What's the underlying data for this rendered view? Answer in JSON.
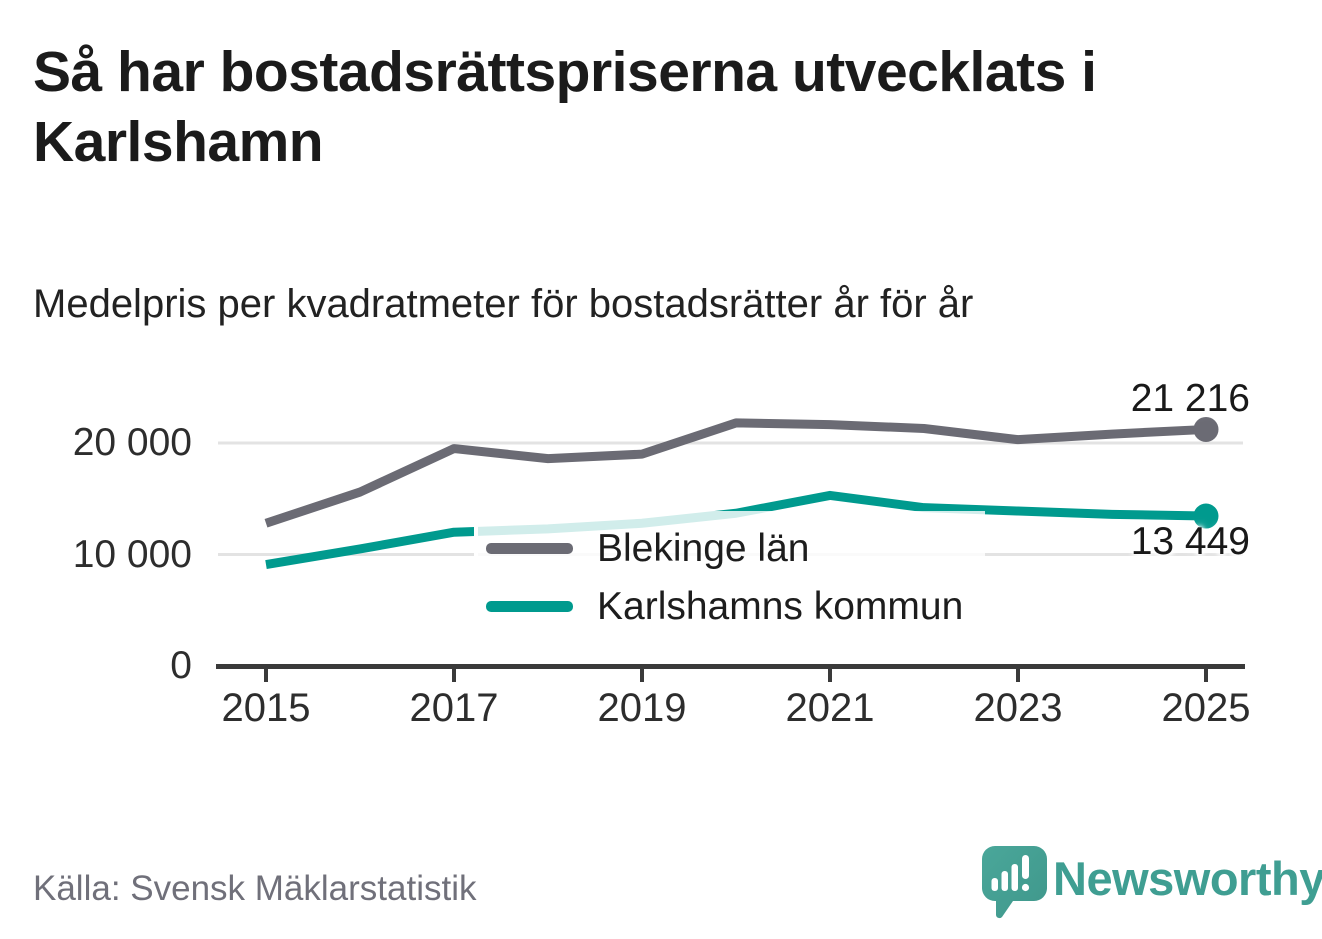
{
  "header": {
    "title": "Så har bostadsrättspriserna utvecklats i\nKarlshamn",
    "subtitle": "Medelpris per kvadratmeter för bostadsrätter år för år"
  },
  "chart_data": {
    "type": "line",
    "x": [
      2015,
      2016,
      2017,
      2018,
      2019,
      2020,
      2021,
      2022,
      2023,
      2024,
      2025
    ],
    "series": [
      {
        "name": "Blekinge län",
        "color": "#6b6b74",
        "values": [
          12800,
          15600,
          19500,
          18600,
          19000,
          21800,
          21650,
          21300,
          20300,
          20800,
          21216
        ],
        "end_label": "21 216"
      },
      {
        "name": "Karlshamns kommun",
        "color": "#009a8e",
        "values": [
          9100,
          10500,
          12000,
          12300,
          12800,
          13700,
          15300,
          14200,
          13900,
          13600,
          13449
        ],
        "end_label": "13 449"
      }
    ],
    "xticks": [
      2015,
      2017,
      2019,
      2021,
      2023,
      2025
    ],
    "xtick_labels": [
      "2015",
      "2017",
      "2019",
      "2021",
      "2023",
      "2025"
    ],
    "yticks": [
      0,
      10000,
      20000
    ],
    "ytick_labels": [
      "0",
      "10 000",
      "20 000"
    ],
    "ylim": [
      0,
      23000
    ],
    "grid": "horizontal",
    "legend_position": "inside-center"
  },
  "footer": {
    "source": "Källa: Svensk Mäklarstatistik",
    "brand": {
      "name": "Newsworthy",
      "icon": "speech-bubble-bar-chart-icon",
      "color": "#3f9e92"
    }
  },
  "colors": {
    "blekinge": "#6b6b74",
    "karlshamn": "#009a8e",
    "grid": "#e3e3e3",
    "axis": "#3a3a3a",
    "text": "#1b1b1b",
    "muted_text": "#70707a",
    "brand_teal": "#44a094"
  }
}
